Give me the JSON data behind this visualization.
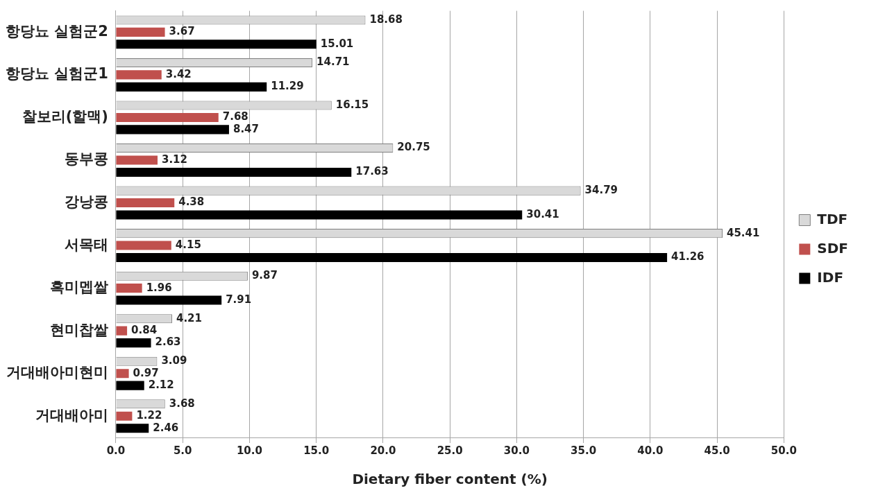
{
  "chart_data": {
    "type": "bar",
    "orientation": "horizontal",
    "xlabel": "Dietary fiber content (%)",
    "categories": [
      "항당뇨 실험군2",
      "항당뇨 실험군1",
      "찰보리(할맥)",
      "동부콩",
      "강낭콩",
      "서목태",
      "흑미멥쌀",
      "현미찹쌀",
      "거대배아미현미",
      "거대배아미"
    ],
    "series": [
      {
        "name": "TDF",
        "color": "#d9d9d9",
        "values": [
          18.68,
          14.71,
          16.15,
          20.75,
          34.79,
          45.41,
          9.87,
          4.21,
          3.09,
          3.68
        ]
      },
      {
        "name": "SDF",
        "color": "#c0504d",
        "values": [
          3.67,
          3.42,
          7.68,
          3.12,
          4.38,
          4.15,
          1.96,
          0.84,
          0.97,
          1.22
        ]
      },
      {
        "name": "IDF",
        "color": "#000000",
        "values": [
          15.01,
          11.29,
          8.47,
          17.63,
          30.41,
          41.26,
          7.91,
          2.63,
          2.12,
          2.46
        ]
      }
    ],
    "xlim": [
      0,
      50
    ],
    "xticks": [
      {
        "value": 0,
        "label": "0.0"
      },
      {
        "value": 5,
        "label": "5.0"
      },
      {
        "value": 10,
        "label": "10.0"
      },
      {
        "value": 15,
        "label": "15.0"
      },
      {
        "value": 20,
        "label": "20.0"
      },
      {
        "value": 25,
        "label": "25.0"
      },
      {
        "value": 30,
        "label": "30.0"
      },
      {
        "value": 35,
        "label": "35.0"
      },
      {
        "value": 40,
        "label": "40.0"
      },
      {
        "value": 45,
        "label": "45.0"
      },
      {
        "value": 50,
        "label": "50.0"
      }
    ],
    "grid": "x",
    "legend": "right",
    "data_labels": true
  }
}
